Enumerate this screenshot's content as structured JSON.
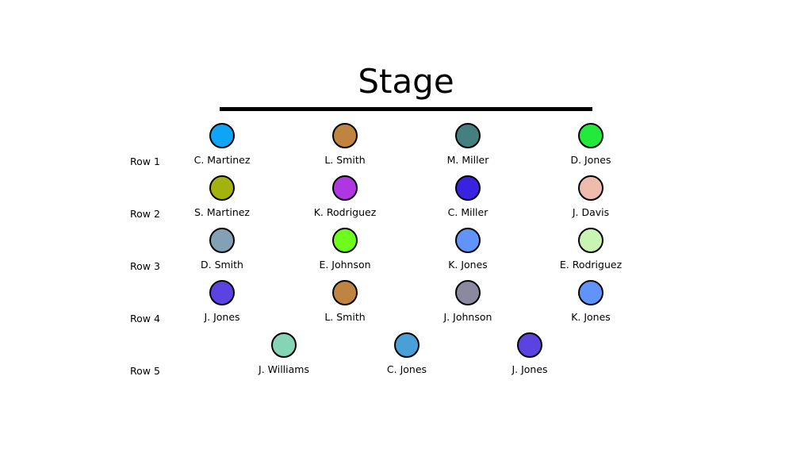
{
  "stage": {
    "title": "Stage"
  },
  "rows": [
    {
      "label": "Row 1",
      "seats": [
        {
          "name": "C. Martinez",
          "color": "#0ea5f7"
        },
        {
          "name": "L. Smith",
          "color": "#bf843f"
        },
        {
          "name": "M. Miller",
          "color": "#448080"
        },
        {
          "name": "D. Jones",
          "color": "#22ea3a"
        }
      ]
    },
    {
      "label": "Row 2",
      "seats": [
        {
          "name": "S. Martinez",
          "color": "#a3b30e"
        },
        {
          "name": "K. Rodriguez",
          "color": "#ae37e2"
        },
        {
          "name": "C. Miller",
          "color": "#3922e2"
        },
        {
          "name": "J. Davis",
          "color": "#efbbae"
        }
      ]
    },
    {
      "label": "Row 3",
      "seats": [
        {
          "name": "D. Smith",
          "color": "#84a0b5"
        },
        {
          "name": "E. Johnson",
          "color": "#6efc1c"
        },
        {
          "name": "K. Jones",
          "color": "#6194fb"
        },
        {
          "name": "E. Rodriguez",
          "color": "#c9f4b3"
        }
      ]
    },
    {
      "label": "Row 4",
      "seats": [
        {
          "name": "J. Jones",
          "color": "#5b43e2"
        },
        {
          "name": "L. Smith",
          "color": "#bf843f"
        },
        {
          "name": "J. Johnson",
          "color": "#8a899f"
        },
        {
          "name": "K. Jones",
          "color": "#6194fb"
        }
      ]
    },
    {
      "label": "Row 5",
      "seats": [
        {
          "name": "J. Williams",
          "color": "#85d4b6"
        },
        {
          "name": "C. Jones",
          "color": "#4b9fd7"
        },
        {
          "name": "J. Jones",
          "color": "#5b43e2"
        }
      ]
    }
  ]
}
